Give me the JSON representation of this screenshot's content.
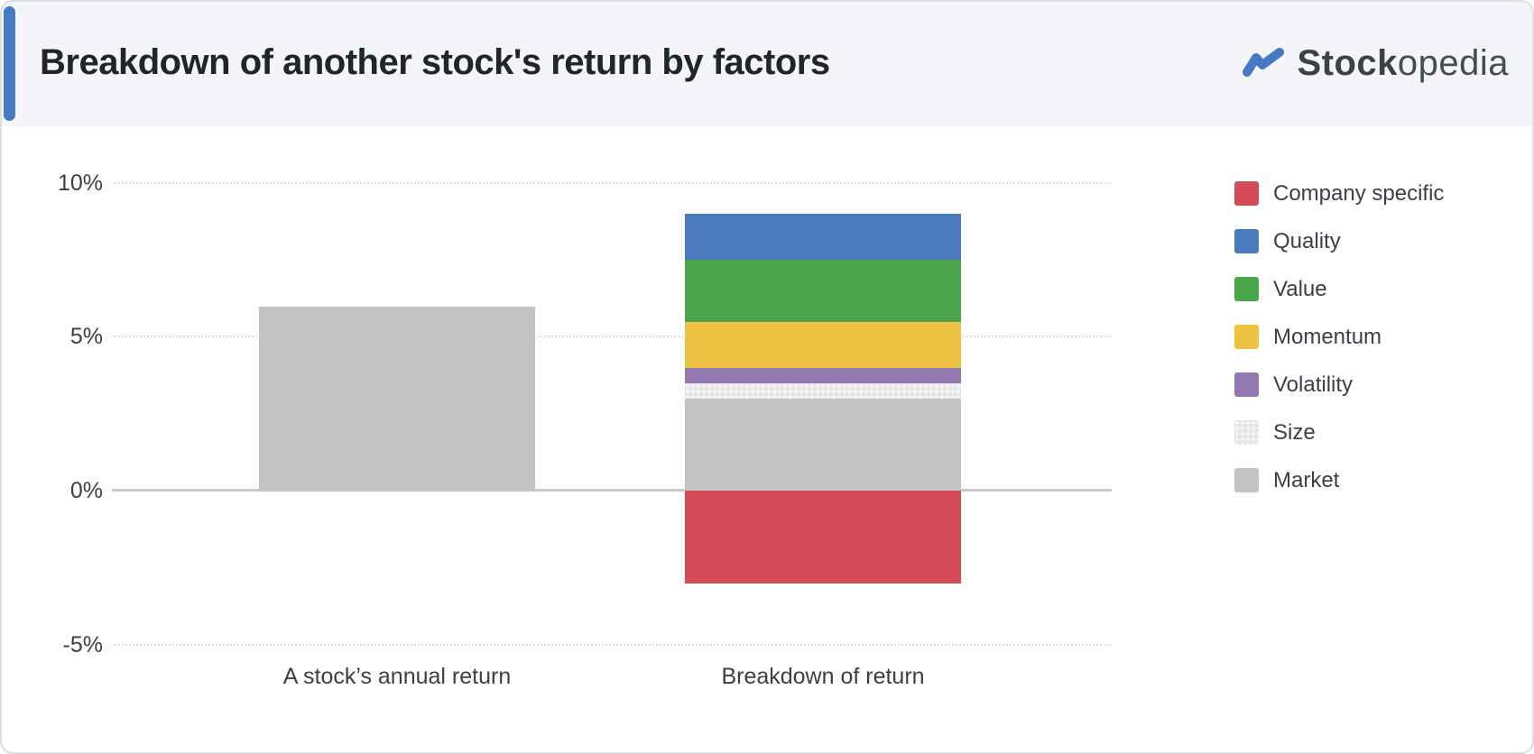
{
  "header": {
    "title": "Breakdown of another stock's return by factors",
    "brand": {
      "bold": "Stock",
      "light": "opedia",
      "icon": "trend-zigzag-icon",
      "accent_color": "#4879c5"
    }
  },
  "chart_data": {
    "type": "bar",
    "subtype": "stacked-bar-with-comparison",
    "title": "Breakdown of another stock's return by factors",
    "categories": [
      "A stock’s annual return",
      "Breakdown of return"
    ],
    "y_ticks": [
      "10%",
      "5%",
      "0%",
      "-5%"
    ],
    "ylim": [
      -5,
      10
    ],
    "grid": true,
    "legend_position": "right",
    "bars": [
      {
        "category": "A stock’s annual return",
        "segments": [
          {
            "name": "Annual return",
            "value": 6.0,
            "color": "#c3c3c4"
          }
        ]
      },
      {
        "category": "Breakdown of return",
        "segments": [
          {
            "name": "Quality",
            "value": 1.5,
            "color": "#4a79bd"
          },
          {
            "name": "Value",
            "value": 2.0,
            "color": "#4aa54a"
          },
          {
            "name": "Momentum",
            "value": 1.5,
            "color": "#edc243"
          },
          {
            "name": "Volatility",
            "value": 0.5,
            "color": "#9378af"
          },
          {
            "name": "Size",
            "value": 0.5,
            "color": "#eaeaea",
            "pattern": "dotted"
          },
          {
            "name": "Market",
            "value": 3.0,
            "color": "#c3c3c4"
          },
          {
            "name": "Company specific",
            "value": -3.0,
            "color": "#d24b57"
          }
        ]
      }
    ],
    "legend": [
      {
        "label": "Company specific",
        "color": "#d24b57"
      },
      {
        "label": "Quality",
        "color": "#4a79bd"
      },
      {
        "label": "Value",
        "color": "#4aa54a"
      },
      {
        "label": "Momentum",
        "color": "#edc243"
      },
      {
        "label": "Volatility",
        "color": "#9378af"
      },
      {
        "label": "Size",
        "color": "#eaeaea",
        "pattern": "dotted"
      },
      {
        "label": "Market",
        "color": "#c3c3c4"
      }
    ]
  }
}
